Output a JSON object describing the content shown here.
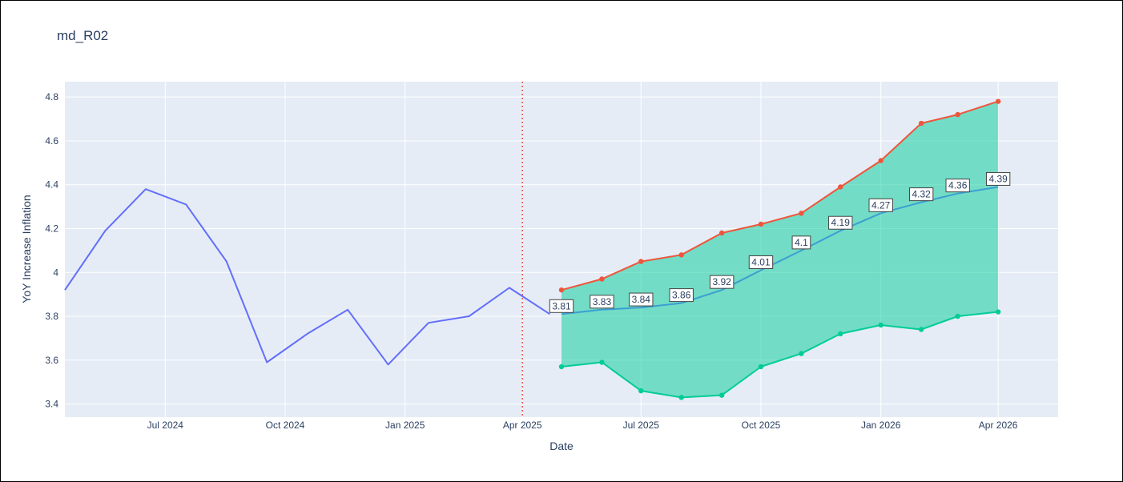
{
  "chart_data": {
    "type": "line",
    "title": "md_R02",
    "xlabel": "Date",
    "ylabel": "YoY Increase Inflation",
    "ylim": [
      3.34,
      4.87
    ],
    "xlim": [
      "2024-04-15",
      "2026-05-17"
    ],
    "x_ticks": [
      {
        "date": "2024-07-01",
        "label": "Jul 2024"
      },
      {
        "date": "2024-10-01",
        "label": "Oct 2024"
      },
      {
        "date": "2025-01-01",
        "label": "Jan 2025"
      },
      {
        "date": "2025-04-01",
        "label": "Apr 2025"
      },
      {
        "date": "2025-07-01",
        "label": "Jul 2025"
      },
      {
        "date": "2025-10-01",
        "label": "Oct 2025"
      },
      {
        "date": "2026-01-01",
        "label": "Jan 2026"
      },
      {
        "date": "2026-04-01",
        "label": "Apr 2026"
      }
    ],
    "y_ticks": [
      {
        "value": 3.4,
        "label": "3.4"
      },
      {
        "value": 3.6,
        "label": "3.6"
      },
      {
        "value": 3.8,
        "label": "3.8"
      },
      {
        "value": 4.0,
        "label": "4"
      },
      {
        "value": 4.2,
        "label": "4.2"
      },
      {
        "value": 4.4,
        "label": "4.4"
      },
      {
        "value": 4.6,
        "label": "4.6"
      },
      {
        "value": 4.8,
        "label": "4.8"
      }
    ],
    "grid": true,
    "plot_background": "#e5ecf6",
    "forecast_start": "2025-04-01",
    "history": {
      "color": "#636efa",
      "x": [
        "2024-04-15",
        "2024-05-16",
        "2024-06-16",
        "2024-07-17",
        "2024-08-17",
        "2024-09-17",
        "2024-10-18",
        "2024-11-18",
        "2024-12-19",
        "2025-01-19",
        "2025-02-19",
        "2025-03-22",
        "2025-04-22"
      ],
      "values": [
        3.92,
        4.19,
        4.38,
        4.31,
        4.05,
        3.59,
        3.72,
        3.83,
        3.58,
        3.77,
        3.8,
        3.93,
        3.81
      ]
    },
    "forecast": {
      "color": "#3b9fd1",
      "x": [
        "2025-05-01",
        "2025-06-01",
        "2025-07-01",
        "2025-08-01",
        "2025-09-01",
        "2025-10-01",
        "2025-11-01",
        "2025-12-01",
        "2026-01-01",
        "2026-02-01",
        "2026-03-01",
        "2026-04-01"
      ],
      "values": [
        3.81,
        3.83,
        3.84,
        3.86,
        3.92,
        4.01,
        4.1,
        4.19,
        4.27,
        4.32,
        4.36,
        4.39
      ],
      "labels": [
        "3.81",
        "3.83",
        "3.84",
        "3.86",
        "3.92",
        "4.01",
        "4.1",
        "4.19",
        "4.27",
        "4.32",
        "4.36",
        "4.39"
      ]
    },
    "upper": {
      "color": "#ef553b",
      "values": [
        3.92,
        3.97,
        4.05,
        4.08,
        4.18,
        4.22,
        4.27,
        4.39,
        4.51,
        4.68,
        4.72,
        4.78
      ]
    },
    "lower": {
      "color": "#00cc96",
      "values": [
        3.57,
        3.59,
        3.46,
        3.43,
        3.44,
        3.57,
        3.63,
        3.72,
        3.76,
        3.74,
        3.8,
        3.82
      ]
    },
    "band_fill": "#00cc96",
    "marker_line_color": "#ef553b"
  }
}
